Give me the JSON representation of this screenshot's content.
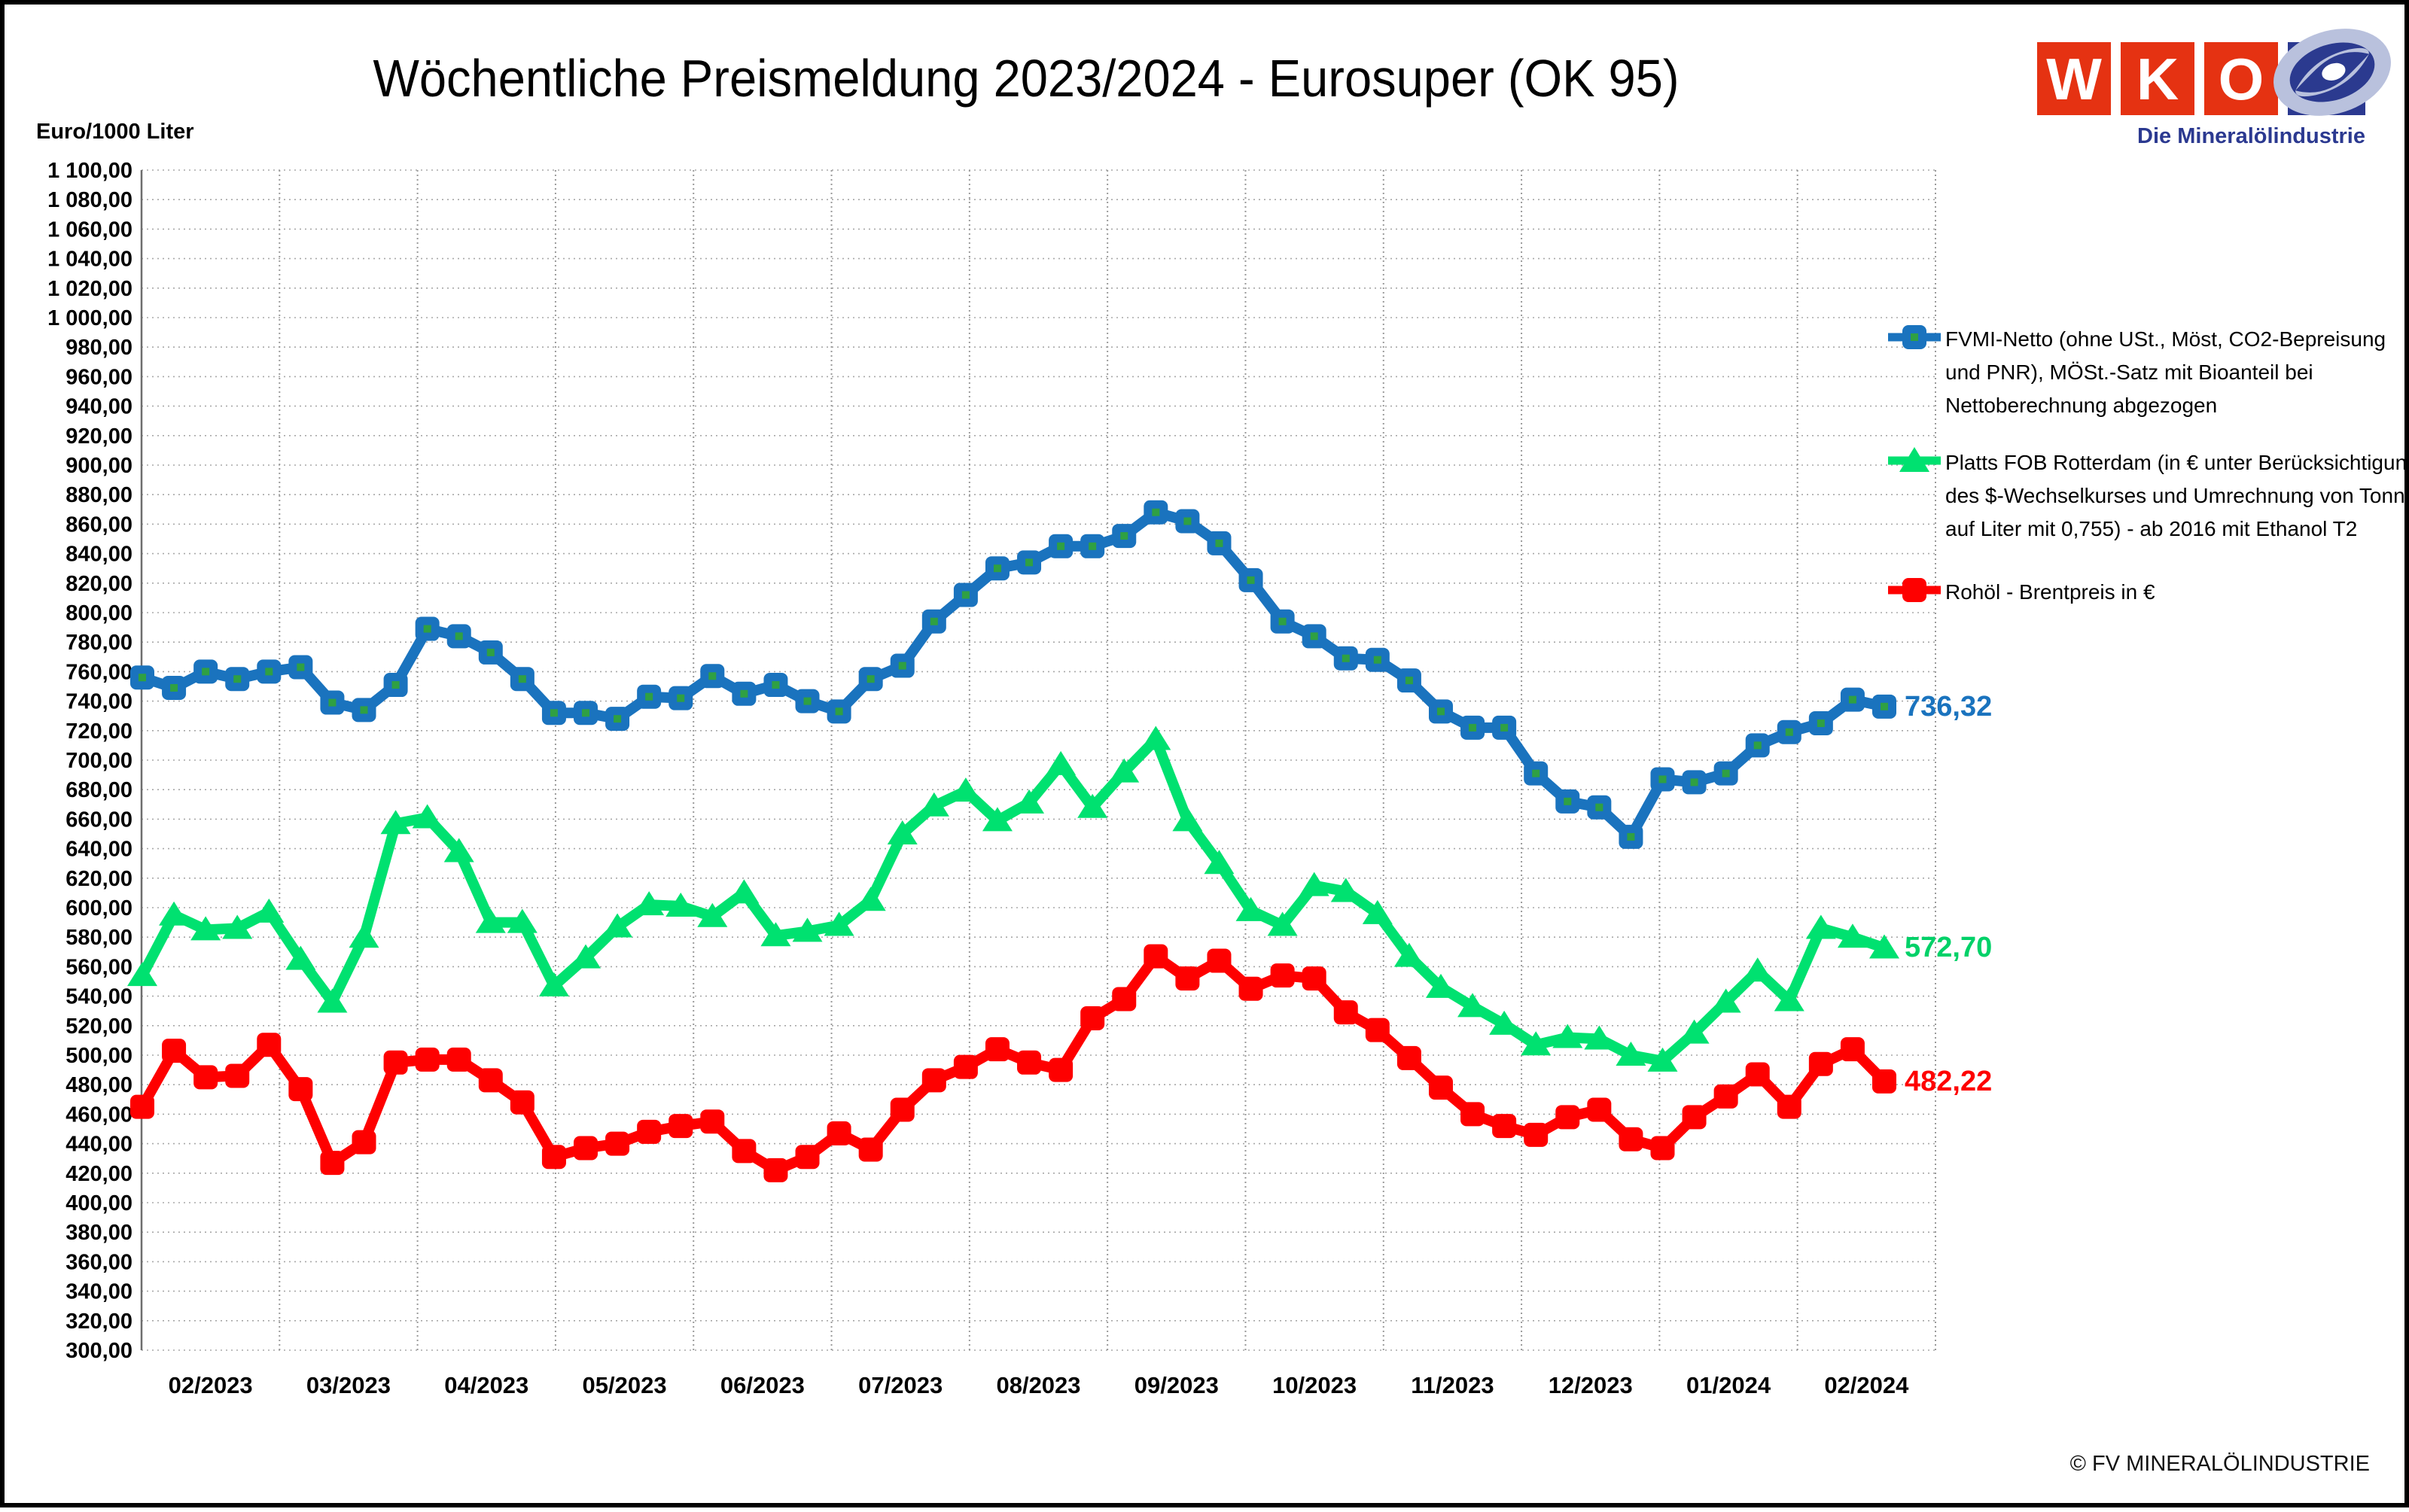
{
  "title": "Wöchentliche Preismeldung  2023/2024 - Eurosuper (OK 95)",
  "y_axis_header": "Euro/1000 Liter",
  "footer": "© FV MINERALÖLINDUSTRIE",
  "logo": {
    "letters": [
      "W",
      "K",
      "O"
    ],
    "subtitle": "Die Mineralölindustrie",
    "red": "#e53212",
    "blue": "#2b3990",
    "swirl_light": "#b9c1dd",
    "swirl_dark": "#2b3a8f"
  },
  "legend": {
    "entries": [
      {
        "marker": "square-blue",
        "color": "#1a73be",
        "lines": [
          "FVMI-Netto (ohne USt., Möst, CO2-Bepreisung",
          "und PNR), MÖSt.-Satz mit Bioanteil bei",
          "Nettoberechnung abgezogen"
        ]
      },
      {
        "marker": "triangle-green",
        "color": "#00e170",
        "lines": [
          "Platts FOB Rotterdam (in € unter Berücksichtigung",
          "des $-Wechselkurses und Umrechnung von Tonne",
          "auf Liter mit 0,755) - ab 2016 mit Ethanol T2"
        ]
      },
      {
        "marker": "square-red",
        "color": "#fe0000",
        "lines": [
          "Rohöl - Brentpreis in €"
        ]
      }
    ]
  },
  "chart_data": {
    "type": "line",
    "title": "Wöchentliche Preismeldung 2023/2024 - Eurosuper (OK 95)",
    "ylabel": "Euro/1000 Liter",
    "ylim": [
      300,
      1100
    ],
    "y_step": 20,
    "grid": "dotted",
    "legend_position": "right",
    "x_unit": "week",
    "n_points": 56,
    "months": [
      "02/2023",
      "03/2023",
      "04/2023",
      "05/2023",
      "06/2023",
      "07/2023",
      "08/2023",
      "09/2023",
      "10/2023",
      "11/2023",
      "12/2023",
      "01/2024",
      "02/2024"
    ],
    "y_tick_labels": [
      "1 100,00",
      "1 080,00",
      "1 060,00",
      "1 040,00",
      "1 020,00",
      "1 000,00",
      "980,00",
      "960,00",
      "940,00",
      "920,00",
      "900,00",
      "880,00",
      "860,00",
      "840,00",
      "820,00",
      "800,00",
      "780,00",
      "760,00",
      "740,00",
      "720,00",
      "700,00",
      "680,00",
      "660,00",
      "640,00",
      "620,00",
      "600,00",
      "580,00",
      "560,00",
      "540,00",
      "520,00",
      "500,00",
      "480,00",
      "460,00",
      "440,00",
      "420,00",
      "400,00",
      "380,00",
      "360,00",
      "340,00",
      "320,00",
      "300,00"
    ],
    "series": [
      {
        "name": "FVMI-Netto (ohne USt., Möst, CO2-Bepreisung und PNR), MÖSt.-Satz mit Bioanteil bei Nettoberechnung abgezogen",
        "color": "#1a73be",
        "marker": "square",
        "marker_dot_color": "#2fa043",
        "end_label": "736,32",
        "values": [
          756,
          749,
          760,
          755,
          760,
          763,
          739,
          734,
          751,
          789,
          784,
          773,
          755,
          732,
          732,
          728,
          743,
          742,
          757,
          745,
          751,
          740,
          733,
          755,
          764,
          794,
          812,
          830,
          834,
          845,
          845,
          852,
          868,
          862,
          847,
          822,
          794,
          784,
          769,
          768,
          754,
          733,
          722,
          722,
          691,
          672,
          668,
          648,
          687,
          685,
          691,
          710,
          719,
          725,
          741,
          736.32
        ]
      },
      {
        "name": "Platts FOB Rotterdam (in € unter Berücksichtigung des $-Wechselkurses und Umrechnung von Tonne auf Liter mit 0,755) - ab 2016 mit Ethanol T2",
        "color": "#00e170",
        "marker": "triangle",
        "end_label": "572,70",
        "values": [
          554,
          595,
          585,
          586,
          597,
          565,
          536,
          580,
          657,
          661,
          638,
          590,
          590,
          547,
          566,
          587,
          602,
          601,
          594,
          610,
          581,
          584,
          588,
          605,
          650,
          669,
          679,
          659,
          671,
          697,
          668,
          692,
          714,
          659,
          630,
          598,
          588,
          615,
          611,
          596,
          567,
          546,
          533,
          521,
          507,
          512,
          511,
          500,
          496,
          515,
          536,
          557,
          537,
          586,
          580,
          572.7
        ]
      },
      {
        "name": "Rohöl - Brentpreis in €",
        "color": "#fe0000",
        "marker": "square",
        "end_label": "482,22",
        "values": [
          465,
          503,
          485,
          486,
          507,
          477,
          427,
          441,
          495,
          497,
          497,
          483,
          468,
          431,
          437,
          440,
          448,
          452,
          455,
          435,
          422,
          431,
          447,
          436,
          463,
          483,
          492,
          504,
          495,
          490,
          525,
          538,
          567,
          552,
          564,
          545,
          554,
          552,
          529,
          517,
          498,
          478,
          460,
          452,
          446,
          458,
          463,
          443,
          437,
          458,
          472,
          487,
          465,
          494,
          504,
          482.22
        ]
      }
    ]
  }
}
